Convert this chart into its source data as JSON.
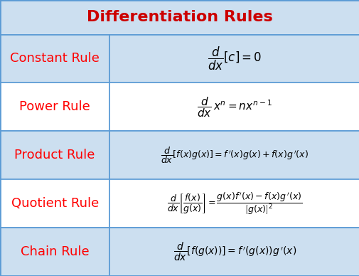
{
  "title": "Differentiation Rules",
  "title_color": "#CC0000",
  "title_fontsize": 16,
  "header_bg": "#CCDFF0",
  "row_bg_odd": "#CCDFF0",
  "row_bg_even": "#FFFFFF",
  "border_color": "#5B9BD5",
  "rule_name_color": "#FF0000",
  "rule_name_fontsize": 13,
  "formula_color": "#000000",
  "rows": [
    {
      "name": "Constant Rule",
      "formula": "$\\dfrac{d}{dx}[c] = 0$",
      "formula_fontsize": 12
    },
    {
      "name": "Power Rule",
      "formula": "$\\dfrac{d}{dx}\\,x^n = nx^{n-1}$",
      "formula_fontsize": 11
    },
    {
      "name": "Product Rule",
      "formula": "$\\dfrac{d}{dx}[f(x)g(x)] = f\\,'(x)g(x) + f(x)g\\,'(x)$",
      "formula_fontsize": 9
    },
    {
      "name": "Quotient Rule",
      "formula": "$\\dfrac{d}{dx}\\left[\\dfrac{f(x)}{g(x)}\\right] = \\dfrac{g(x)f\\,'(x) - f(x)g\\,'(x)}{\\left[g(x)\\right]^2}$",
      "formula_fontsize": 9
    },
    {
      "name": "Chain Rule",
      "formula": "$\\dfrac{d}{dx}\\left[f(g(x))\\right] = f\\,'(g(x))g\\,'(x)$",
      "formula_fontsize": 10
    }
  ],
  "col_split": 0.305,
  "figsize": [
    5.06,
    3.88
  ],
  "dpi": 100,
  "bg_colors": [
    "#CCDFF0",
    "#FFFFFF",
    "#CCDFF0",
    "#FFFFFF",
    "#CCDFF0"
  ]
}
